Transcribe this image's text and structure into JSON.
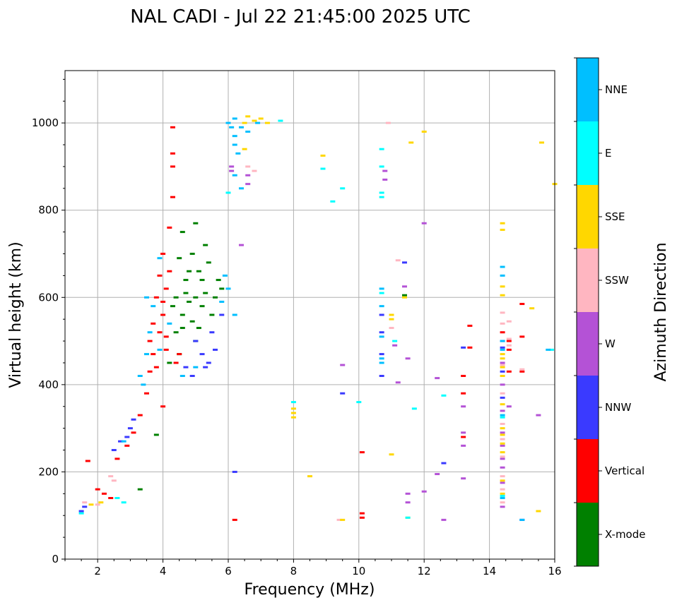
{
  "chart_data": {
    "type": "scatter",
    "title": "NAL CADI - Jul 22 21:45:00 2025 UTC",
    "xlabel": "Frequency (MHz)",
    "ylabel": "Virtual height (km)",
    "xlim": [
      1,
      16
    ],
    "ylim": [
      0,
      1120
    ],
    "xticks": [
      2,
      4,
      6,
      8,
      10,
      12,
      14,
      16
    ],
    "yticks": [
      0,
      200,
      400,
      600,
      800,
      1000
    ],
    "grid": true,
    "colorbar": {
      "label": "Azimuth Direction",
      "categories": [
        {
          "name": "X-mode",
          "color": "#008000"
        },
        {
          "name": "Vertical",
          "color": "#ff0000"
        },
        {
          "name": "NNW",
          "color": "#3a3aff"
        },
        {
          "name": "W",
          "color": "#b452d6"
        },
        {
          "name": "SSW",
          "color": "#ffb6c1"
        },
        {
          "name": "SSE",
          "color": "#ffd700"
        },
        {
          "name": "E",
          "color": "#00ffff"
        },
        {
          "name": "NNE",
          "color": "#00bfff"
        }
      ]
    },
    "series": [
      {
        "name": "X-mode",
        "points": [
          [
            3.8,
            285
          ],
          [
            3.3,
            160
          ],
          [
            4.6,
            560
          ],
          [
            4.8,
            590
          ],
          [
            5.0,
            600
          ],
          [
            5.2,
            640
          ],
          [
            4.4,
            520
          ],
          [
            4.9,
            700
          ],
          [
            5.3,
            720
          ],
          [
            5.6,
            600
          ],
          [
            4.7,
            640
          ],
          [
            5.1,
            530
          ],
          [
            4.5,
            470
          ],
          [
            5.4,
            680
          ],
          [
            4.6,
            750
          ],
          [
            5.0,
            770
          ],
          [
            4.2,
            450
          ],
          [
            5.8,
            620
          ],
          [
            11.4,
            605
          ],
          [
            4.3,
            580
          ],
          [
            4.8,
            660
          ],
          [
            5.5,
            560
          ],
          [
            5.0,
            500
          ],
          [
            4.7,
            610
          ],
          [
            5.2,
            580
          ],
          [
            4.9,
            545
          ],
          [
            4.4,
            600
          ],
          [
            5.3,
            610
          ],
          [
            5.1,
            660
          ],
          [
            4.6,
            530
          ],
          [
            5.7,
            640
          ],
          [
            4.5,
            690
          ]
        ]
      },
      {
        "name": "Vertical",
        "points": [
          [
            1.7,
            225
          ],
          [
            2.0,
            160
          ],
          [
            2.2,
            150
          ],
          [
            2.4,
            140
          ],
          [
            2.6,
            230
          ],
          [
            2.9,
            260
          ],
          [
            3.1,
            290
          ],
          [
            3.3,
            330
          ],
          [
            3.5,
            380
          ],
          [
            3.6,
            430
          ],
          [
            3.7,
            470
          ],
          [
            3.9,
            520
          ],
          [
            4.0,
            560
          ],
          [
            3.8,
            600
          ],
          [
            4.1,
            620
          ],
          [
            4.0,
            700
          ],
          [
            4.2,
            760
          ],
          [
            4.3,
            830
          ],
          [
            4.3,
            930
          ],
          [
            4.3,
            990
          ],
          [
            4.1,
            480
          ],
          [
            4.4,
            450
          ],
          [
            4.5,
            470
          ],
          [
            3.7,
            540
          ],
          [
            3.9,
            650
          ],
          [
            4.2,
            660
          ],
          [
            4.0,
            350
          ],
          [
            6.2,
            90
          ],
          [
            10.1,
            105
          ],
          [
            10.1,
            95
          ],
          [
            10.1,
            245
          ],
          [
            13.2,
            420
          ],
          [
            13.2,
            380
          ],
          [
            13.2,
            280
          ],
          [
            13.4,
            485
          ],
          [
            13.4,
            535
          ],
          [
            14.6,
            500
          ],
          [
            14.6,
            480
          ],
          [
            14.6,
            430
          ],
          [
            15.0,
            585
          ],
          [
            15.0,
            510
          ],
          [
            15.0,
            430
          ],
          [
            14.4,
            520
          ],
          [
            3.6,
            500
          ],
          [
            3.8,
            440
          ],
          [
            4.3,
            900
          ],
          [
            4.1,
            510
          ],
          [
            4.0,
            590
          ]
        ]
      },
      {
        "name": "NNW",
        "points": [
          [
            1.5,
            110
          ],
          [
            1.6,
            120
          ],
          [
            2.5,
            250
          ],
          [
            2.7,
            270
          ],
          [
            2.9,
            280
          ],
          [
            3.1,
            320
          ],
          [
            5.0,
            500
          ],
          [
            5.2,
            470
          ],
          [
            5.5,
            520
          ],
          [
            5.8,
            560
          ],
          [
            5.3,
            440
          ],
          [
            4.9,
            420
          ],
          [
            4.7,
            440
          ],
          [
            6.2,
            200
          ],
          [
            10.7,
            560
          ],
          [
            10.7,
            520
          ],
          [
            10.7,
            470
          ],
          [
            10.7,
            420
          ],
          [
            9.5,
            380
          ],
          [
            11.4,
            680
          ],
          [
            12.6,
            220
          ],
          [
            13.2,
            485
          ],
          [
            14.4,
            485
          ],
          [
            14.4,
            430
          ],
          [
            14.4,
            370
          ],
          [
            15.0,
            90
          ],
          [
            5.6,
            480
          ],
          [
            5.4,
            450
          ],
          [
            3.0,
            300
          ]
        ]
      },
      {
        "name": "W",
        "points": [
          [
            6.1,
            890
          ],
          [
            6.6,
            860
          ],
          [
            6.6,
            880
          ],
          [
            10.8,
            890
          ],
          [
            10.8,
            870
          ],
          [
            11.4,
            625
          ],
          [
            12.0,
            770
          ],
          [
            11.5,
            460
          ],
          [
            11.1,
            490
          ],
          [
            9.5,
            445
          ],
          [
            13.2,
            290
          ],
          [
            13.2,
            350
          ],
          [
            13.2,
            260
          ],
          [
            13.2,
            185
          ],
          [
            12.4,
            195
          ],
          [
            12.0,
            155
          ],
          [
            11.5,
            130
          ],
          [
            11.5,
            150
          ],
          [
            12.6,
            90
          ],
          [
            14.4,
            500
          ],
          [
            14.4,
            400
          ],
          [
            14.4,
            340
          ],
          [
            14.4,
            290
          ],
          [
            14.4,
            260
          ],
          [
            14.4,
            230
          ],
          [
            14.4,
            210
          ],
          [
            14.4,
            175
          ],
          [
            14.4,
            120
          ],
          [
            14.6,
            350
          ],
          [
            15.5,
            330
          ],
          [
            12.4,
            415
          ],
          [
            11.2,
            405
          ],
          [
            6.1,
            900
          ],
          [
            6.4,
            720
          ],
          [
            14.4,
            450
          ]
        ]
      },
      {
        "name": "SSW",
        "points": [
          [
            1.6,
            130
          ],
          [
            2.0,
            125
          ],
          [
            2.4,
            190
          ],
          [
            2.5,
            180
          ],
          [
            6.6,
            900
          ],
          [
            6.8,
            890
          ],
          [
            9.4,
            90
          ],
          [
            10.9,
            1000
          ],
          [
            11.0,
            530
          ],
          [
            11.2,
            685
          ],
          [
            14.4,
            565
          ],
          [
            14.4,
            540
          ],
          [
            14.6,
            545
          ],
          [
            14.6,
            505
          ],
          [
            14.4,
            380
          ],
          [
            14.4,
            310
          ],
          [
            14.4,
            275
          ],
          [
            14.4,
            235
          ],
          [
            14.4,
            190
          ],
          [
            14.4,
            160
          ],
          [
            14.4,
            130
          ],
          [
            14.6,
            490
          ],
          [
            15.0,
            435
          ],
          [
            14.4,
            445
          ]
        ]
      },
      {
        "name": "SSE",
        "points": [
          [
            1.8,
            125
          ],
          [
            2.1,
            130
          ],
          [
            6.8,
            1005
          ],
          [
            7.0,
            1010
          ],
          [
            7.2,
            1000
          ],
          [
            6.5,
            940
          ],
          [
            6.6,
            1015
          ],
          [
            8.9,
            925
          ],
          [
            8.0,
            345
          ],
          [
            8.0,
            335
          ],
          [
            8.0,
            325
          ],
          [
            8.5,
            190
          ],
          [
            9.5,
            90
          ],
          [
            11.0,
            560
          ],
          [
            11.0,
            550
          ],
          [
            11.0,
            240
          ],
          [
            11.6,
            955
          ],
          [
            12.0,
            980
          ],
          [
            11.5,
            95
          ],
          [
            14.4,
            770
          ],
          [
            14.4,
            755
          ],
          [
            14.4,
            625
          ],
          [
            14.4,
            605
          ],
          [
            14.4,
            470
          ],
          [
            14.4,
            460
          ],
          [
            14.4,
            440
          ],
          [
            14.4,
            420
          ],
          [
            14.4,
            355
          ],
          [
            14.4,
            300
          ],
          [
            14.4,
            285
          ],
          [
            14.4,
            265
          ],
          [
            14.4,
            245
          ],
          [
            14.4,
            180
          ],
          [
            14.4,
            150
          ],
          [
            15.3,
            575
          ],
          [
            15.5,
            110
          ],
          [
            15.6,
            955
          ],
          [
            16.0,
            860
          ],
          [
            6.5,
            1000
          ],
          [
            11.4,
            600
          ]
        ]
      },
      {
        "name": "E",
        "points": [
          [
            1.5,
            105
          ],
          [
            2.6,
            140
          ],
          [
            2.8,
            130
          ],
          [
            6.0,
            840
          ],
          [
            8.9,
            895
          ],
          [
            9.2,
            820
          ],
          [
            9.5,
            850
          ],
          [
            10.0,
            360
          ],
          [
            10.7,
            940
          ],
          [
            10.7,
            900
          ],
          [
            10.7,
            840
          ],
          [
            10.7,
            830
          ],
          [
            11.1,
            500
          ],
          [
            11.7,
            345
          ],
          [
            12.6,
            375
          ],
          [
            14.4,
            145
          ],
          [
            14.4,
            325
          ],
          [
            7.6,
            1005
          ],
          [
            8.0,
            360
          ],
          [
            11.5,
            95
          ],
          [
            15.9,
            480
          ],
          [
            10.7,
            610
          ]
        ]
      },
      {
        "name": "NNE",
        "points": [
          [
            2.8,
            270
          ],
          [
            3.4,
            400
          ],
          [
            3.5,
            470
          ],
          [
            3.6,
            520
          ],
          [
            3.7,
            580
          ],
          [
            4.2,
            540
          ],
          [
            4.6,
            420
          ],
          [
            5.0,
            440
          ],
          [
            5.8,
            590
          ],
          [
            6.0,
            620
          ],
          [
            6.2,
            560
          ],
          [
            6.1,
            990
          ],
          [
            6.2,
            970
          ],
          [
            6.2,
            950
          ],
          [
            6.3,
            930
          ],
          [
            6.2,
            1010
          ],
          [
            6.4,
            990
          ],
          [
            6.6,
            980
          ],
          [
            6.4,
            850
          ],
          [
            6.9,
            1000
          ],
          [
            10.7,
            620
          ],
          [
            10.7,
            580
          ],
          [
            10.7,
            510
          ],
          [
            10.7,
            460
          ],
          [
            10.7,
            450
          ],
          [
            14.4,
            670
          ],
          [
            14.4,
            650
          ],
          [
            14.4,
            500
          ],
          [
            14.4,
            480
          ],
          [
            14.4,
            330
          ],
          [
            14.4,
            140
          ],
          [
            15.0,
            90
          ],
          [
            6.0,
            1000
          ],
          [
            3.9,
            690
          ],
          [
            3.5,
            600
          ],
          [
            3.3,
            420
          ],
          [
            3.9,
            480
          ],
          [
            6.2,
            880
          ],
          [
            5.9,
            650
          ],
          [
            15.8,
            480
          ]
        ]
      }
    ]
  },
  "colors": {
    "grid": "#b0b0b0",
    "axis": "#000000"
  }
}
